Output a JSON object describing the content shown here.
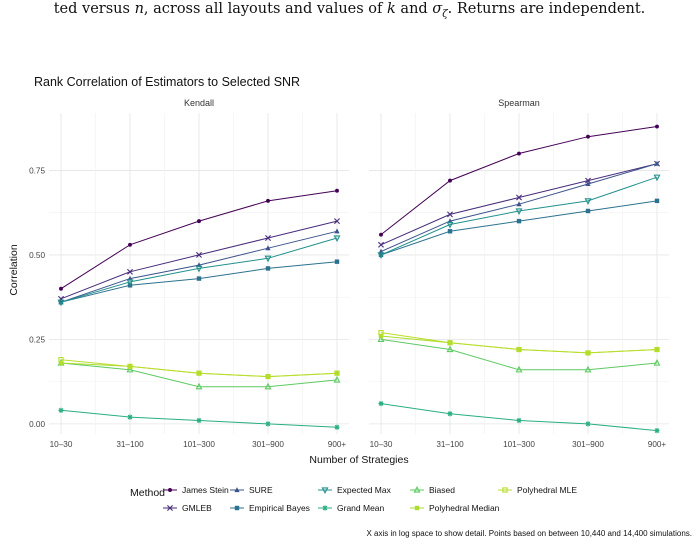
{
  "caption": {
    "prefix": "ted versus ",
    "var_n": "n",
    "mid": ", across all layouts and values of ",
    "var_k": "k",
    "and": " and ",
    "var_sigma": "σ",
    "sub": "ζ",
    "suffix": ". Returns are independent."
  },
  "chart_data": {
    "type": "line",
    "title": "Rank Correlation of Estimators to Selected SNR",
    "xlabel": "Number of Strategies",
    "ylabel": "Correlation",
    "categories": [
      "10–30",
      "31–100",
      "101–300",
      "301–900",
      "900+"
    ],
    "yticks": [
      "0.00",
      "0.25",
      "0.50",
      "0.75"
    ],
    "ytick_values": [
      0,
      0.25,
      0.5,
      0.75
    ],
    "ylim": [
      -0.03,
      0.92
    ],
    "grid": true,
    "legend_title": "Method",
    "legend_position": "bottom",
    "note": "X axis in log space to show detail. Points based on between 10,440 and 14,400 simulations.",
    "panels": [
      {
        "name": "Kendall",
        "series": [
          {
            "name": "James Stein",
            "values": [
              0.4,
              0.53,
              0.6,
              0.66,
              0.69
            ]
          },
          {
            "name": "GMLEB",
            "values": [
              0.37,
              0.45,
              0.5,
              0.55,
              0.6
            ]
          },
          {
            "name": "SURE",
            "values": [
              0.36,
              0.43,
              0.47,
              0.52,
              0.57
            ]
          },
          {
            "name": "Empirical Bayes",
            "values": [
              0.36,
              0.41,
              0.43,
              0.46,
              0.48
            ]
          },
          {
            "name": "Expected Max",
            "values": [
              0.36,
              0.42,
              0.46,
              0.49,
              0.55
            ]
          },
          {
            "name": "Grand Mean",
            "values": [
              0.04,
              0.02,
              0.01,
              0.0,
              -0.01
            ]
          },
          {
            "name": "Biased",
            "values": [
              0.18,
              0.16,
              0.11,
              0.11,
              0.13
            ]
          },
          {
            "name": "Polyhedral Median",
            "values": [
              0.18,
              0.17,
              0.15,
              0.14,
              0.15
            ]
          },
          {
            "name": "Polyhedral MLE",
            "values": [
              0.19,
              0.17,
              0.15,
              0.14,
              0.15
            ]
          }
        ]
      },
      {
        "name": "Spearman",
        "series": [
          {
            "name": "James Stein",
            "values": [
              0.56,
              0.72,
              0.8,
              0.85,
              0.88
            ]
          },
          {
            "name": "GMLEB",
            "values": [
              0.53,
              0.62,
              0.67,
              0.72,
              0.77
            ]
          },
          {
            "name": "SURE",
            "values": [
              0.51,
              0.6,
              0.65,
              0.71,
              0.77
            ]
          },
          {
            "name": "Empirical Bayes",
            "values": [
              0.5,
              0.57,
              0.6,
              0.63,
              0.66
            ]
          },
          {
            "name": "Expected Max",
            "values": [
              0.5,
              0.59,
              0.63,
              0.66,
              0.73
            ]
          },
          {
            "name": "Grand Mean",
            "values": [
              0.06,
              0.03,
              0.01,
              0.0,
              -0.02
            ]
          },
          {
            "name": "Biased",
            "values": [
              0.25,
              0.22,
              0.16,
              0.16,
              0.18
            ]
          },
          {
            "name": "Polyhedral Median",
            "values": [
              0.26,
              0.24,
              0.22,
              0.21,
              0.22
            ]
          },
          {
            "name": "Polyhedral MLE",
            "values": [
              0.27,
              0.24,
              0.22,
              0.21,
              0.22
            ]
          }
        ]
      }
    ],
    "series_styles": [
      {
        "name": "James Stein",
        "color": "#440154",
        "marker": "dot"
      },
      {
        "name": "GMLEB",
        "color": "#472d7b",
        "marker": "x"
      },
      {
        "name": "SURE",
        "color": "#3b528b",
        "marker": "tri-up-filled"
      },
      {
        "name": "Empirical Bayes",
        "color": "#2c728e",
        "marker": "square"
      },
      {
        "name": "Expected Max",
        "color": "#21918c",
        "marker": "tri-down"
      },
      {
        "name": "Grand Mean",
        "color": "#28ae80",
        "marker": "asterisk"
      },
      {
        "name": "Biased",
        "color": "#5ec962",
        "marker": "tri-up"
      },
      {
        "name": "Polyhedral Median",
        "color": "#addc30",
        "marker": "square-filled"
      },
      {
        "name": "Polyhedral MLE",
        "color": "#b8de29",
        "marker": "square-open"
      }
    ],
    "legend_rows": [
      [
        "James Stein",
        "SURE",
        "Expected Max",
        "Biased",
        "Polyhedral MLE"
      ],
      [
        "GMLEB",
        "Empirical Bayes",
        "Grand Mean",
        "Polyhedral Median"
      ]
    ]
  }
}
